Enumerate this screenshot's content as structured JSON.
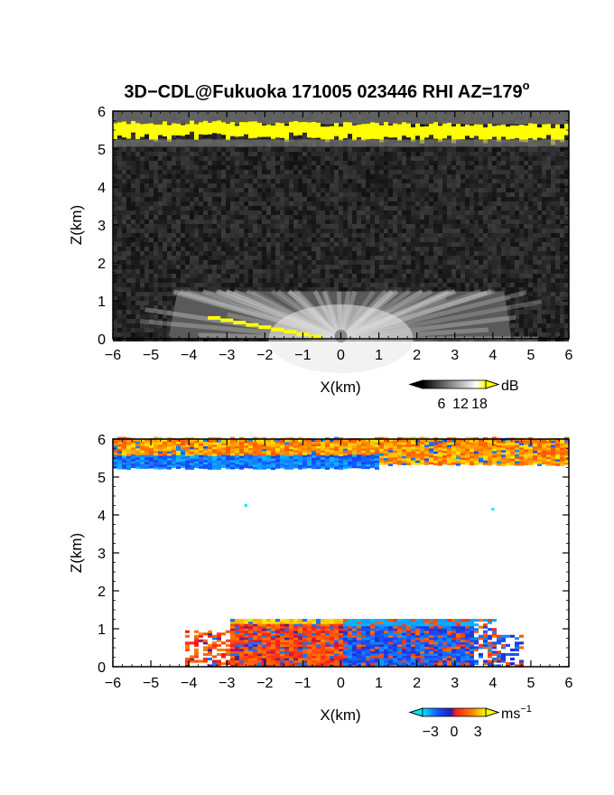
{
  "title": "3D−CDL@Fukuoka 171005 023446 RHI AZ=179",
  "title_degree": "o",
  "chart_data": [
    {
      "type": "heatmap",
      "panel": "top",
      "quantity": "backscatter intensity",
      "xlabel": "X(km)",
      "ylabel": "Z(km)",
      "xlim": [
        -6,
        6
      ],
      "ylim": [
        0,
        6
      ],
      "xticks": [
        -6,
        -5,
        -4,
        -3,
        -2,
        -1,
        0,
        1,
        2,
        3,
        4,
        5,
        6
      ],
      "yticks": [
        0,
        1,
        2,
        3,
        4,
        5,
        6
      ],
      "colorbar": {
        "unit": "dB",
        "ticks": [
          6,
          12,
          18
        ],
        "range": [
          0,
          20
        ],
        "colormap": "grayscale to yellow",
        "low_color": "#000000",
        "high_color": "#ffff00"
      },
      "features": [
        {
          "name": "cloud layer",
          "z_range": [
            5.3,
            5.8
          ],
          "x_range": [
            -6,
            6
          ],
          "value_db": 20
        },
        {
          "name": "boundary layer fan",
          "z_range": [
            0,
            1.25
          ],
          "x_range": [
            -4.3,
            4.3
          ],
          "value_db": 12
        },
        {
          "name": "ground echo",
          "from": [
            -3.5,
            0.55
          ],
          "to": [
            -0.5,
            0.0
          ],
          "value_db": 20
        }
      ]
    },
    {
      "type": "heatmap",
      "panel": "bottom",
      "quantity": "Doppler velocity",
      "xlabel": "X(km)",
      "ylabel": "Z(km)",
      "xlim": [
        -6,
        6
      ],
      "ylim": [
        0,
        6
      ],
      "xticks": [
        -6,
        -5,
        -4,
        -3,
        -2,
        -1,
        0,
        1,
        2,
        3,
        4,
        5,
        6
      ],
      "yticks": [
        0,
        1,
        2,
        3,
        4,
        5,
        6
      ],
      "colorbar": {
        "unit": "ms",
        "unit_sup": "−1",
        "ticks": [
          "−3",
          "0",
          "3"
        ],
        "range": [
          -4,
          4
        ],
        "colormap": "cyan-blue-red-orange-yellow",
        "low_color": "#00e5ff",
        "high_color": "#ffff00"
      },
      "features": [
        {
          "name": "cloud layer",
          "z_range": [
            5.2,
            6.0
          ],
          "x_range": [
            -6,
            6
          ],
          "velocity": 2.5
        },
        {
          "name": "cloud base negative",
          "z_range": [
            5.0,
            5.5
          ],
          "x_range": [
            -6,
            1
          ],
          "velocity": -2.5
        },
        {
          "name": "boundary layer west",
          "z_range": [
            0,
            1.25
          ],
          "x_range": [
            -4,
            0
          ],
          "velocity": 1.0
        },
        {
          "name": "boundary layer east",
          "z_range": [
            0,
            1.25
          ],
          "x_range": [
            0,
            4.8
          ],
          "velocity": -2.0
        }
      ]
    }
  ]
}
